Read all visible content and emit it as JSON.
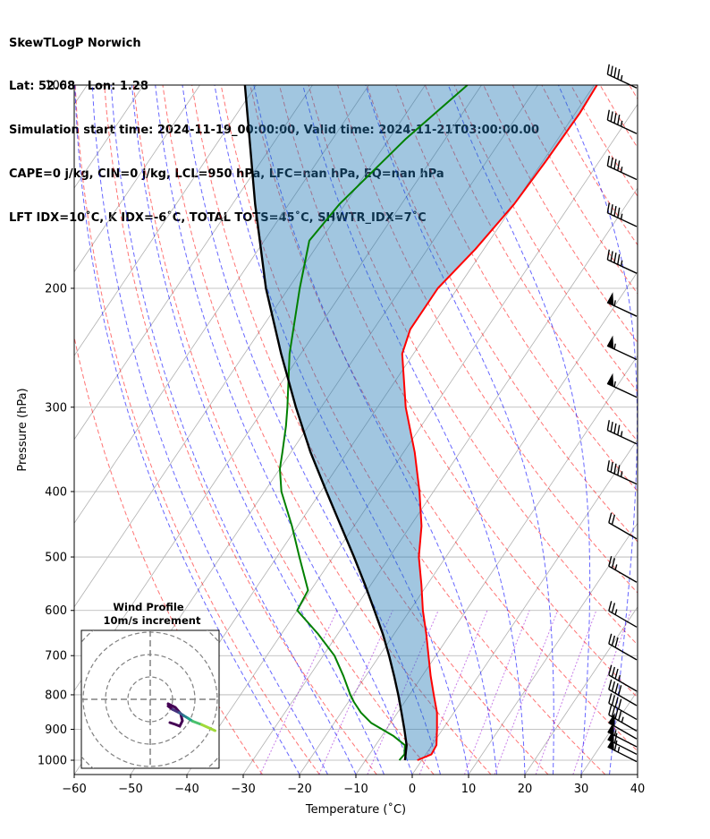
{
  "header": {
    "title": "SkewTLogP Norwich",
    "location": "Lat: 52.68   Lon: 1.28",
    "times": "Simulation start time: 2024-11-19_00:00:00, Valid time: 2024-11-21T03:00:00.00",
    "indices1": "CAPE=0 j/kg, CIN=0 j/kg, LCL=950 hPa, LFC=nan hPa, EQ=nan hPa",
    "indices2": "LFT IDX=10$^\\circ$C, K IDX=-6$^\\circ$C, TOTAL TOTS=45$^\\circ$C, SHWTR_IDX=7$^\\circ$C"
  },
  "chart_data": {
    "type": "line",
    "xlabel": "Temperature ($^\\circ$C)",
    "ylabel": "Pressure (hPa)",
    "xlim": [
      -60,
      40
    ],
    "ylim": [
      1050,
      100
    ],
    "yscale": "log",
    "xticks": [
      "−60",
      "−50",
      "−40",
      "−30",
      "−20",
      "−10",
      "0",
      "10",
      "20",
      "30",
      "40"
    ],
    "yticks": [
      "100",
      "200",
      "300",
      "400",
      "500",
      "600",
      "700",
      "800",
      "900",
      "1000"
    ],
    "grid": true,
    "series": [
      {
        "role": "temperature",
        "color": "#ff0000",
        "points": [
          [
            1000,
            -0.8
          ],
          [
            980,
            1.0
          ],
          [
            950,
            0.8
          ],
          [
            900,
            -1.0
          ],
          [
            850,
            -3.0
          ],
          [
            800,
            -5.7
          ],
          [
            750,
            -8.5
          ],
          [
            700,
            -11.3
          ],
          [
            650,
            -14.3
          ],
          [
            600,
            -17.7
          ],
          [
            550,
            -21.0
          ],
          [
            500,
            -24.8
          ],
          [
            450,
            -28.0
          ],
          [
            400,
            -32.5
          ],
          [
            350,
            -38.0
          ],
          [
            300,
            -45.0
          ],
          [
            250,
            -52.0
          ],
          [
            230,
            -53.5
          ],
          [
            200,
            -53.5
          ],
          [
            175,
            -51.5
          ],
          [
            150,
            -50.0
          ],
          [
            130,
            -49.5
          ],
          [
            110,
            -49.2
          ],
          [
            100,
            -49.5
          ]
        ]
      },
      {
        "role": "dewpoint",
        "color": "#008000",
        "points": [
          [
            1000,
            -4.0
          ],
          [
            980,
            -3.8
          ],
          [
            950,
            -4.8
          ],
          [
            920,
            -8.0
          ],
          [
            880,
            -13.5
          ],
          [
            850,
            -16.5
          ],
          [
            820,
            -19.0
          ],
          [
            800,
            -20.5
          ],
          [
            750,
            -24.0
          ],
          [
            700,
            -28.0
          ],
          [
            650,
            -33.5
          ],
          [
            600,
            -40.0
          ],
          [
            560,
            -40.5
          ],
          [
            500,
            -46.0
          ],
          [
            450,
            -51.0
          ],
          [
            400,
            -57.0
          ],
          [
            370,
            -60.0
          ],
          [
            350,
            -61.5
          ],
          [
            320,
            -64.0
          ],
          [
            300,
            -66.0
          ],
          [
            250,
            -72.0
          ],
          [
            200,
            -78.0
          ],
          [
            170,
            -82.0
          ],
          [
            150,
            -81.0
          ],
          [
            120,
            -77.0
          ],
          [
            100,
            -72.5
          ]
        ]
      },
      {
        "role": "parcel",
        "color": "#000000",
        "points": [
          [
            1000,
            -3.0
          ],
          [
            950,
            -4.5
          ],
          [
            900,
            -6.8
          ],
          [
            850,
            -9.3
          ],
          [
            800,
            -12.0
          ],
          [
            750,
            -15.0
          ],
          [
            700,
            -18.3
          ],
          [
            650,
            -22.0
          ],
          [
            600,
            -26.3
          ],
          [
            550,
            -31.0
          ],
          [
            500,
            -36.3
          ],
          [
            450,
            -42.3
          ],
          [
            400,
            -49.0
          ],
          [
            350,
            -56.5
          ],
          [
            300,
            -64.5
          ],
          [
            250,
            -73.5
          ],
          [
            200,
            -84.0
          ],
          [
            150,
            -96.0
          ],
          [
            100,
            -112.0
          ]
        ]
      }
    ],
    "shading": {
      "between": [
        "temperature",
        "parcel"
      ],
      "color": "#1f77b4"
    },
    "wind_barbs": [
      {
        "p": 1005,
        "speed": 65,
        "dir": 297
      },
      {
        "p": 980,
        "speed": 60,
        "dir": 297
      },
      {
        "p": 955,
        "speed": 55,
        "dir": 297
      },
      {
        "p": 930,
        "speed": 50,
        "dir": 300
      },
      {
        "p": 905,
        "speed": 45,
        "dir": 300
      },
      {
        "p": 870,
        "speed": 40,
        "dir": 300
      },
      {
        "p": 830,
        "speed": 40,
        "dir": 300
      },
      {
        "p": 790,
        "speed": 35,
        "dir": 300
      },
      {
        "p": 710,
        "speed": 30,
        "dir": 300
      },
      {
        "p": 635,
        "speed": 25,
        "dir": 300
      },
      {
        "p": 545,
        "speed": 25,
        "dir": 300
      },
      {
        "p": 470,
        "speed": 20,
        "dir": 300
      },
      {
        "p": 390,
        "speed": 45,
        "dir": 295
      },
      {
        "p": 340,
        "speed": 45,
        "dir": 295
      },
      {
        "p": 290,
        "speed": 55,
        "dir": 295
      },
      {
        "p": 255,
        "speed": 55,
        "dir": 295
      },
      {
        "p": 220,
        "speed": 55,
        "dir": 295
      },
      {
        "p": 190,
        "speed": 45,
        "dir": 295
      },
      {
        "p": 162,
        "speed": 45,
        "dir": 295
      },
      {
        "p": 138,
        "speed": 45,
        "dir": 295
      },
      {
        "p": 118,
        "speed": 45,
        "dir": 295
      },
      {
        "p": 101,
        "speed": 45,
        "dir": 295
      }
    ],
    "hodograph": {
      "title": "Wind Profile",
      "subtitle": "10m/s increment",
      "ring_step_ms": 10,
      "rings": 3,
      "points": [
        [
          8,
          -3
        ],
        [
          10,
          -4.5
        ],
        [
          13,
          -6
        ],
        [
          15,
          -7.3
        ],
        [
          17,
          -8.5
        ],
        [
          19,
          -9.8
        ],
        [
          23,
          -11.3
        ],
        [
          29,
          -14
        ]
      ]
    }
  }
}
